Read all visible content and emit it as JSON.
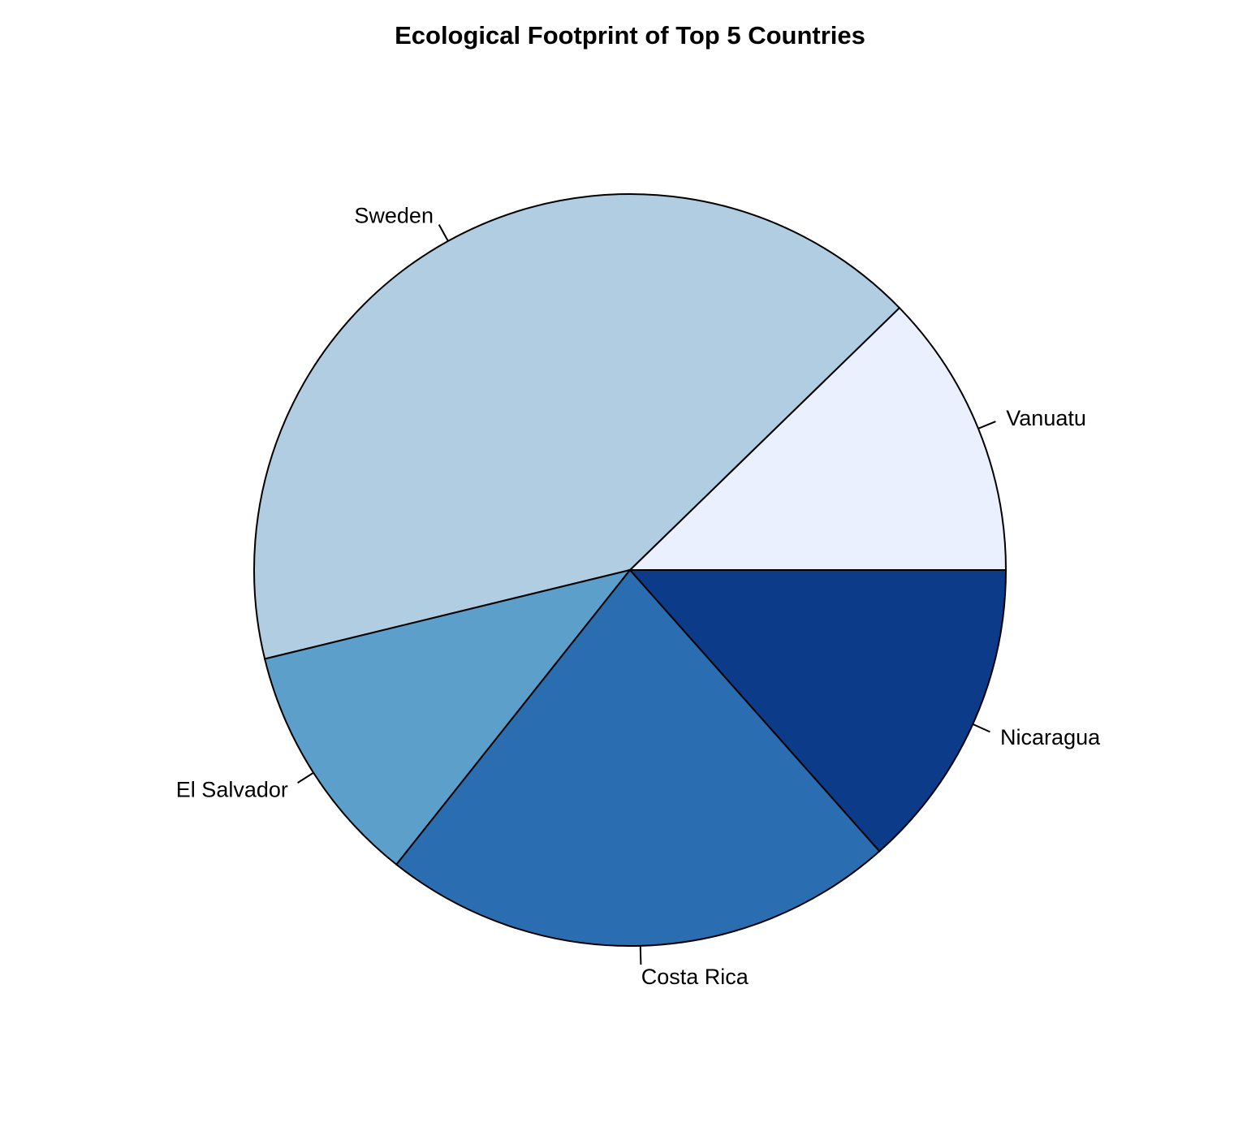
{
  "chart_data": {
    "type": "pie",
    "title": "Ecological Footprint of Top 5 Countries",
    "start_angle_deg": 0,
    "direction": "counterclockwise",
    "slices": [
      {
        "label": "Vanuatu",
        "value": 2.1,
        "color": "#EAF0FD"
      },
      {
        "label": "Sweden",
        "value": 7.1,
        "color": "#B0CDE2"
      },
      {
        "label": "El Salvador",
        "value": 1.8,
        "color": "#5C9FCB"
      },
      {
        "label": "Costa Rica",
        "value": 3.8,
        "color": "#2A6DB0"
      },
      {
        "label": "Nicaragua",
        "value": 2.3,
        "color": "#0C3C89"
      }
    ]
  }
}
